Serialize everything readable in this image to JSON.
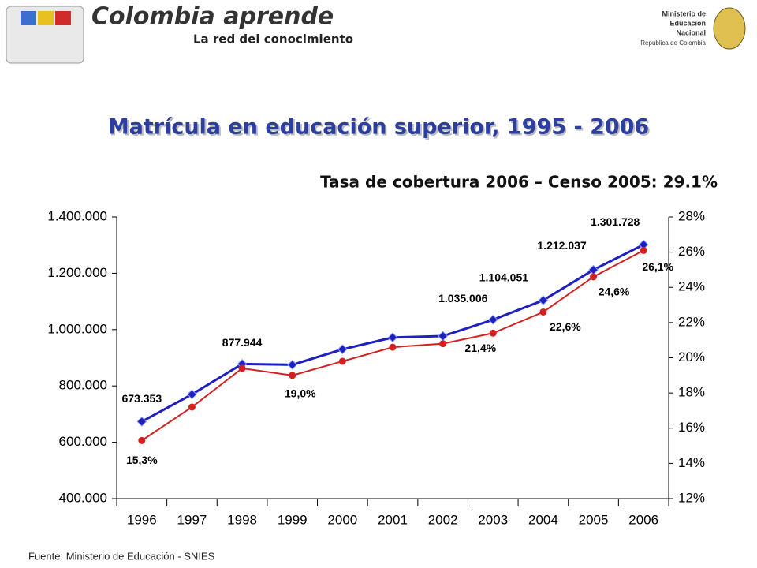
{
  "header": {
    "brand": "Colombia aprende",
    "tagline": "La red del conocimiento",
    "ministry_1": "Ministerio de",
    "ministry_2": "Educación",
    "ministry_3": "Nacional",
    "ministry_4": "República de Colombia"
  },
  "chart_data": {
    "type": "line",
    "title": "Matrícula en educación superior, 1995 - 2006",
    "subtitle": "Tasa de cobertura 2006 – Censo 2005: 29.1%",
    "source": "Fuente: Ministerio de Educación - SNIES",
    "categories": [
      "1996",
      "1997",
      "1998",
      "1999",
      "2000",
      "2001",
      "2002",
      "2003",
      "2004",
      "2005",
      "2006"
    ],
    "series": [
      {
        "name": null,
        "color": "#1f1fbf",
        "values": [
          673353,
          770000,
          877944,
          875000,
          930000,
          972000,
          977000,
          1035006,
          1104051,
          1212037,
          1301728
        ],
        "value_labels": [
          "673.353",
          null,
          "877.944",
          null,
          null,
          null,
          null,
          "1.035.006",
          "1.104.051",
          "1.212.037",
          "1.301.728"
        ]
      },
      {
        "name": null,
        "color": "#d42020",
        "axis": "y2",
        "values": [
          15.3,
          17.2,
          19.4,
          19.0,
          19.8,
          20.6,
          20.8,
          21.4,
          22.6,
          24.6,
          26.1
        ],
        "value_labels": [
          "15,3%",
          null,
          null,
          "19,0%",
          null,
          null,
          null,
          "21,4%",
          "22,6%",
          "24,6%",
          "26,1%"
        ]
      }
    ],
    "ylim": [
      400000,
      1400000
    ],
    "yticks": [
      {
        "value": 400000,
        "label": "400.000"
      },
      {
        "value": 600000,
        "label": "600.000"
      },
      {
        "value": 800000,
        "label": "800.000"
      },
      {
        "value": 1000000,
        "label": "1.000.000"
      },
      {
        "value": 1200000,
        "label": "1.200.000"
      },
      {
        "value": 1400000,
        "label": "1.400.000"
      }
    ],
    "y2lim": [
      12,
      28
    ],
    "y2ticks": [
      {
        "value": 12,
        "label": "12%"
      },
      {
        "value": 14,
        "label": "14%"
      },
      {
        "value": 16,
        "label": "16%"
      },
      {
        "value": 18,
        "label": "18%"
      },
      {
        "value": 20,
        "label": "20%"
      },
      {
        "value": 22,
        "label": "22%"
      },
      {
        "value": 24,
        "label": "24%"
      },
      {
        "value": 26,
        "label": "26%"
      },
      {
        "value": 28,
        "label": "28%"
      }
    ],
    "grid": false
  }
}
